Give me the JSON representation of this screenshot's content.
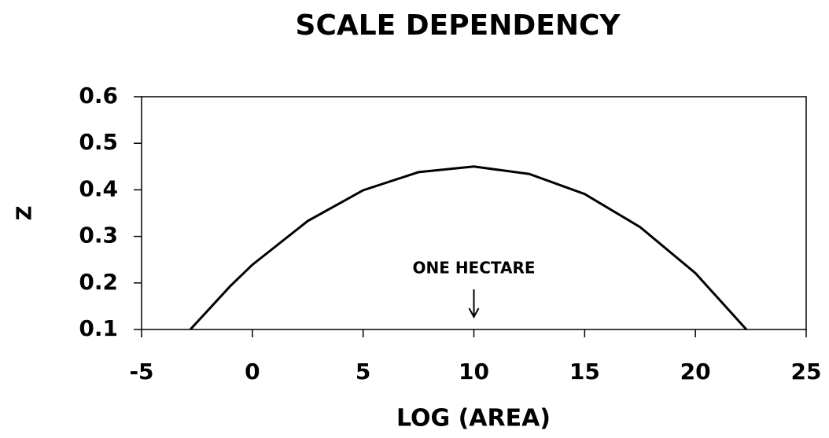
{
  "chart_data": {
    "type": "line",
    "title": "SCALE DEPENDENCY",
    "x_label": "LOG (AREA)",
    "y_label": "Z",
    "x": [
      -2.8,
      -1,
      0,
      2.5,
      5,
      7.5,
      10,
      12.5,
      15,
      17.5,
      20,
      22.3
    ],
    "series": [
      {
        "name": "Z",
        "color": "#000000",
        "values": [
          0.1,
          0.193,
          0.239,
          0.333,
          0.399,
          0.438,
          0.45,
          0.434,
          0.391,
          0.32,
          0.221,
          0.1
        ]
      }
    ],
    "xlim": [
      -5,
      25
    ],
    "xticks": [
      -5,
      0,
      5,
      10,
      15,
      20,
      25
    ],
    "ylim": [
      0.1,
      0.6
    ],
    "yticks": [
      0.1,
      0.2,
      0.3,
      0.4,
      0.5,
      0.6
    ],
    "annotation": {
      "text": "ONE HECTARE",
      "x": 10
    }
  }
}
